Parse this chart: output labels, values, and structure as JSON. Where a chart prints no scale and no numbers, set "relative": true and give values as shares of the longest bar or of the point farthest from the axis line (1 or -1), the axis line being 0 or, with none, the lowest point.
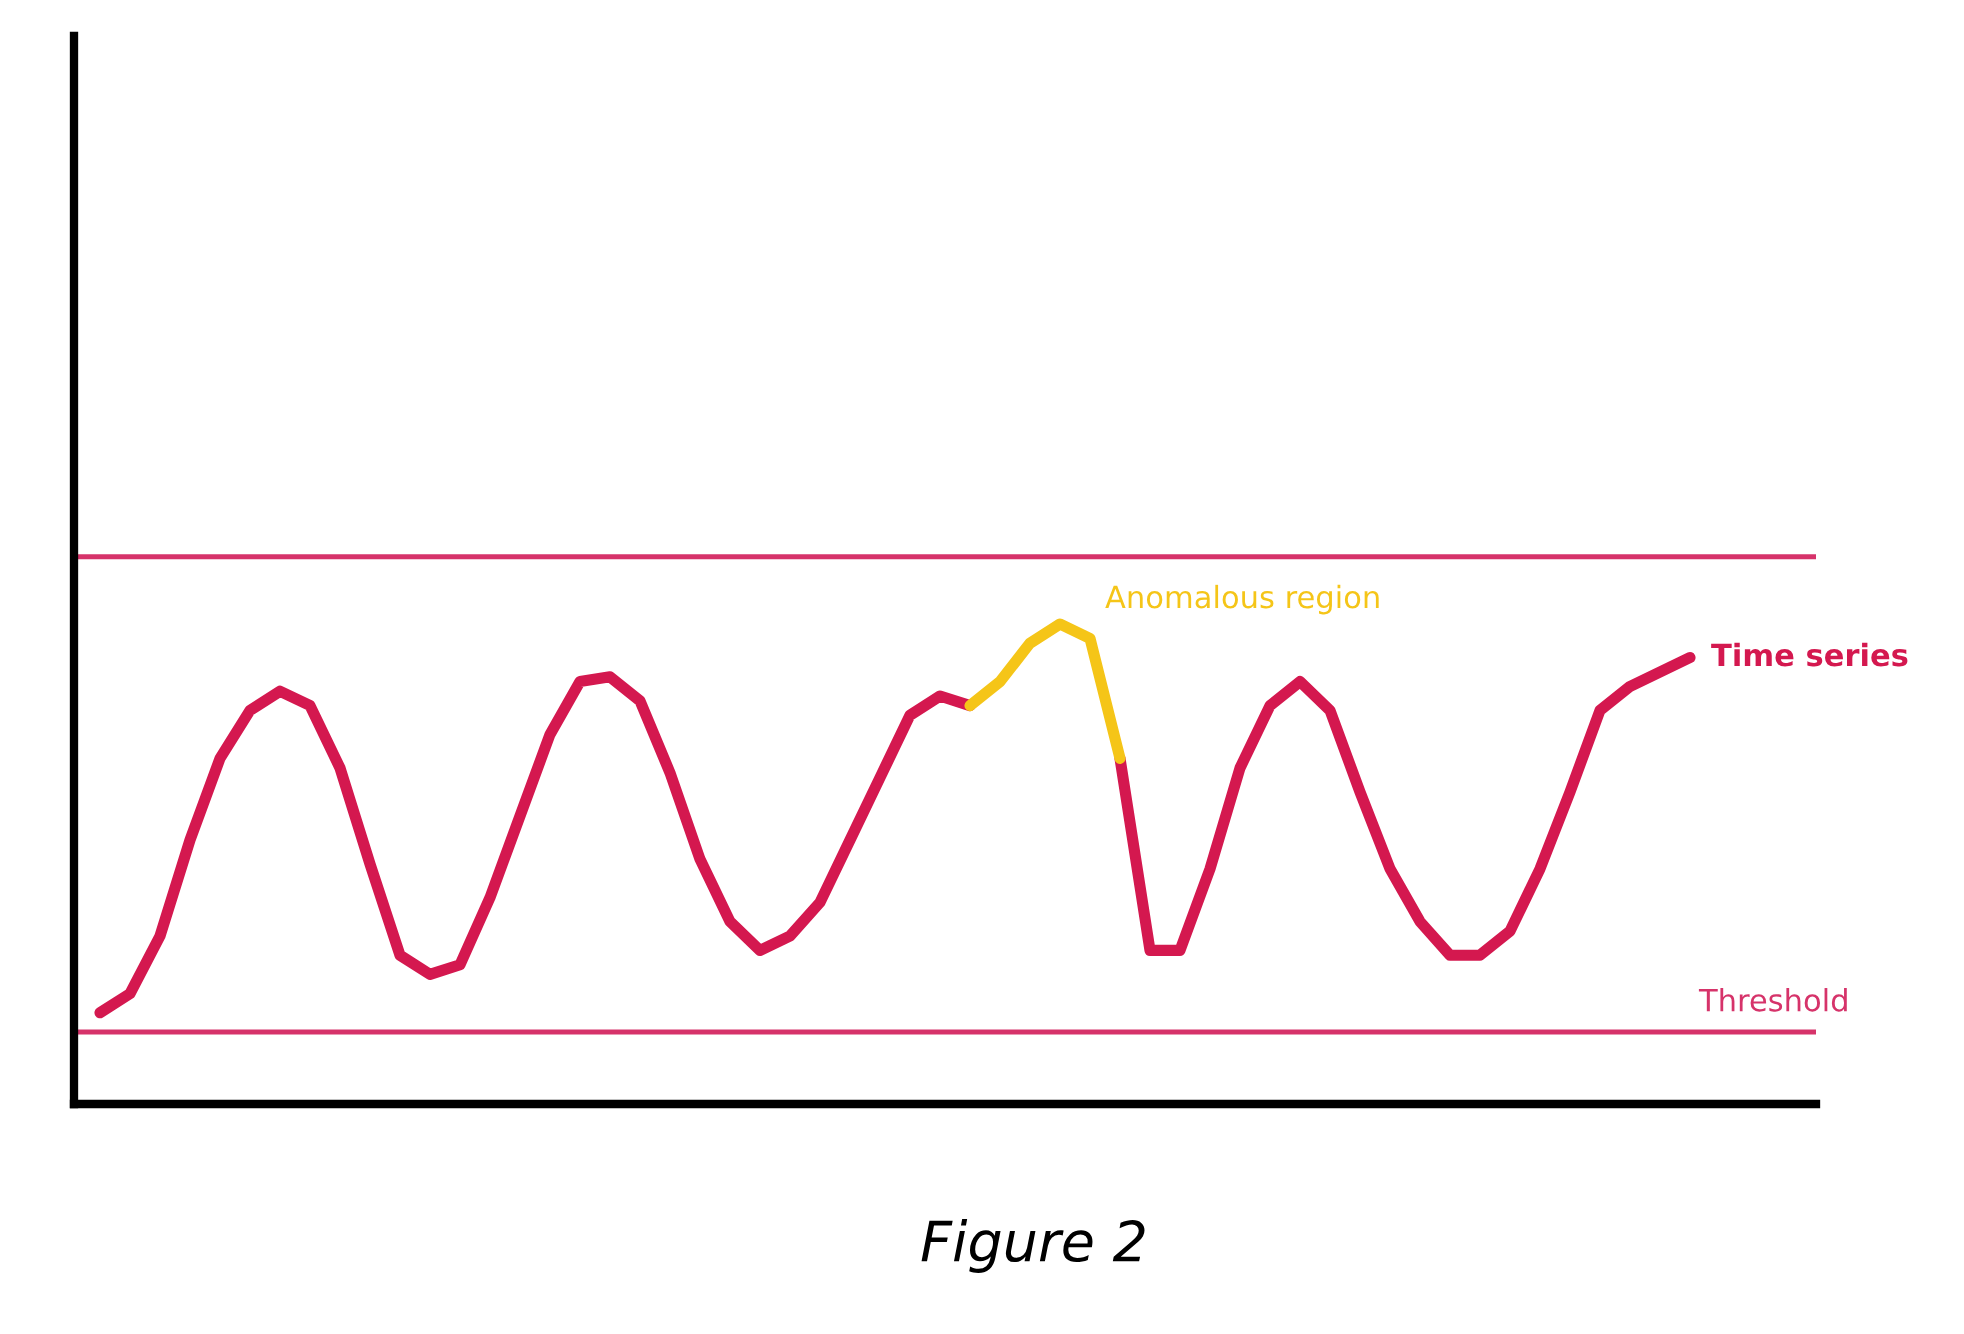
{
  "chart_data": {
    "type": "line",
    "relative": true,
    "categories": [
      null,
      null,
      null,
      null,
      null,
      null,
      null,
      null,
      null,
      null,
      null,
      null,
      null,
      null,
      null,
      null,
      null,
      null,
      null,
      null,
      null,
      null,
      null,
      null,
      null,
      null,
      null,
      null,
      null,
      null,
      null,
      null,
      null,
      null,
      null,
      null,
      null,
      null,
      null,
      null,
      null,
      null,
      null,
      null,
      null,
      null,
      null,
      null,
      null,
      null,
      null,
      null,
      null,
      null
    ],
    "series": [
      {
        "name": "Time series",
        "color": "#d4184f",
        "values": [
          0.19,
          0.23,
          0.35,
          0.55,
          0.72,
          0.82,
          0.86,
          0.83,
          0.7,
          0.5,
          0.31,
          0.27,
          0.29,
          0.43,
          0.6,
          0.77,
          0.88,
          0.89,
          0.84,
          0.69,
          0.51,
          0.38,
          0.32,
          0.35,
          0.42,
          0.55,
          0.68,
          0.81,
          0.85,
          0.83,
          null,
          null,
          null,
          null,
          0.72,
          0.32,
          0.32,
          0.49,
          0.7,
          0.83,
          0.88,
          0.82,
          0.65,
          0.49,
          0.38,
          0.31,
          0.31,
          0.36,
          0.49,
          0.65,
          0.82,
          0.87,
          0.9,
          0.93
        ]
      },
      {
        "name": "Anomalous region",
        "color": "#f5c518",
        "values": [
          null,
          null,
          null,
          null,
          null,
          null,
          null,
          null,
          null,
          null,
          null,
          null,
          null,
          null,
          null,
          null,
          null,
          null,
          null,
          null,
          null,
          null,
          null,
          null,
          null,
          null,
          null,
          null,
          null,
          0.83,
          0.88,
          0.96,
          1,
          0.97,
          0.72,
          null,
          null,
          null,
          null,
          null,
          null,
          null,
          null,
          null,
          null,
          null,
          null,
          null,
          null,
          null,
          null,
          null,
          null,
          null
        ]
      }
    ],
    "ref_lines": [
      {
        "axis": "y",
        "value": 1.14,
        "color": "#d6336a"
      },
      {
        "axis": "y",
        "value": 0.15,
        "label": "Threshold",
        "color": "#d6336a"
      }
    ],
    "legend": false,
    "annotations": [
      "Figure 2"
    ]
  }
}
